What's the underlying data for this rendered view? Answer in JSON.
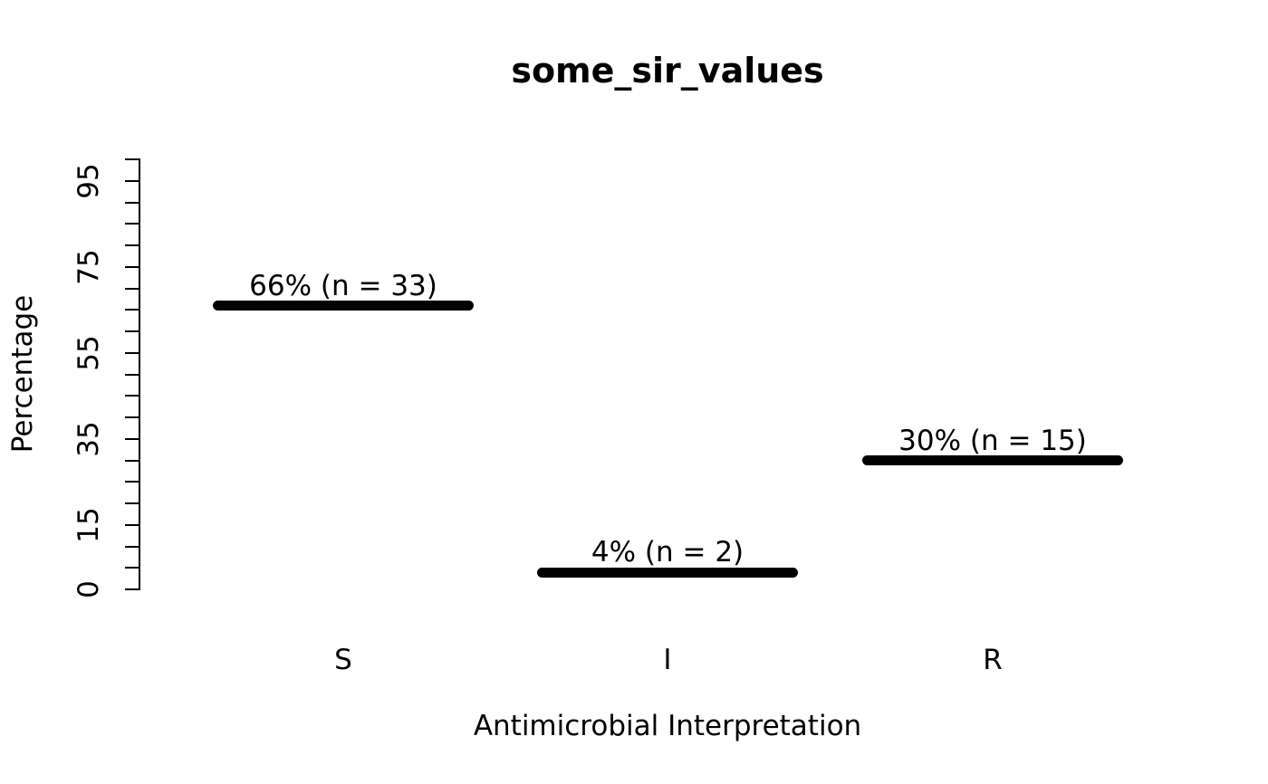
{
  "chart_data": {
    "type": "bar",
    "style": "thick-horizontal-segment-markers",
    "title": "some_sir_values",
    "xlabel": "Antimicrobial Interpretation",
    "ylabel": "Percentage",
    "categories": [
      "S",
      "I",
      "R"
    ],
    "values": [
      66,
      4,
      30
    ],
    "counts": [
      33,
      2,
      15
    ],
    "value_labels": [
      "66% (n = 33)",
      "4% (n = 2)",
      "30% (n = 15)"
    ],
    "ylim": [
      0,
      100
    ],
    "y_tick_step": 5,
    "y_labeled_ticks": [
      0,
      15,
      35,
      55,
      75,
      95
    ],
    "grid": false,
    "legend": null,
    "colors": {
      "bar": "#000000",
      "text": "#000000",
      "background": "#ffffff"
    }
  }
}
